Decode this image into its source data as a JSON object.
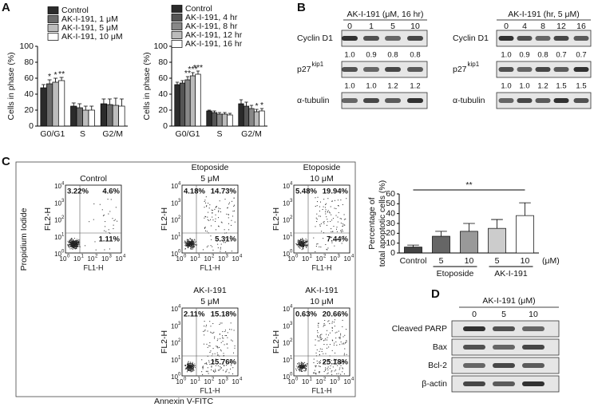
{
  "panel_labels": [
    "A",
    "B",
    "C",
    "D"
  ],
  "chart_data": [
    {
      "type": "bar",
      "ylabel": "Cells in phase (%)",
      "categories": [
        "G0/G1",
        "S",
        "G2/M"
      ],
      "ylim": [
        0,
        100
      ],
      "yticks": [
        0,
        20,
        40,
        60,
        80,
        100
      ],
      "series": [
        {
          "name": "Control",
          "color": "#2b2b2b",
          "values": [
            48,
            25,
            28
          ],
          "errors": [
            4,
            4,
            6
          ]
        },
        {
          "name": "AK-I-191, 1 μM",
          "color": "#6b6b6b",
          "values": [
            53,
            23,
            27
          ],
          "errors": [
            5,
            5,
            7
          ],
          "significance": [
            "*",
            null,
            null
          ]
        },
        {
          "name": "AK-I-191, 5 μM",
          "color": "#bdbdbd",
          "values": [
            55,
            20,
            26
          ],
          "errors": [
            5,
            5,
            9
          ],
          "significance": [
            "*",
            null,
            null
          ]
        },
        {
          "name": "AK-I-191, 10 μM",
          "color": "#ffffff",
          "values": [
            57,
            20,
            25
          ],
          "errors": [
            4,
            5,
            9
          ],
          "significance": [
            "**",
            null,
            null
          ]
        }
      ]
    },
    {
      "type": "bar",
      "ylabel": "Cells in phase (%)",
      "categories": [
        "G0/G1",
        "S",
        "G2/M"
      ],
      "ylim": [
        0,
        100
      ],
      "yticks": [
        0,
        20,
        40,
        60,
        80,
        100
      ],
      "series": [
        {
          "name": "Control",
          "color": "#2b2b2b",
          "values": [
            52,
            19,
            28
          ],
          "errors": [
            3,
            1,
            5
          ]
        },
        {
          "name": "AK-I-191, 4 hr",
          "color": "#555555",
          "values": [
            54,
            17,
            25
          ],
          "errors": [
            3,
            2,
            5
          ]
        },
        {
          "name": "AK-I-191, 8 hr",
          "color": "#888888",
          "values": [
            58,
            15,
            22
          ],
          "errors": [
            4,
            2,
            4
          ],
          "significance": [
            "**",
            null,
            null
          ]
        },
        {
          "name": "AK-I-191, 12 hr",
          "color": "#bbbbbb",
          "values": [
            63,
            15,
            18
          ],
          "errors": [
            4,
            2,
            3
          ],
          "significance": [
            "***",
            null,
            "*"
          ]
        },
        {
          "name": "AK-I-191, 16 hr",
          "color": "#ffffff",
          "values": [
            65,
            14,
            19
          ],
          "errors": [
            4,
            2,
            3
          ],
          "significance": [
            "***",
            null,
            "*"
          ]
        }
      ]
    },
    {
      "type": "bar",
      "ylabel": [
        "Percentage of",
        "total apoptotic cells (%)"
      ],
      "categories": [
        "Control",
        "5",
        "10",
        "5",
        "10"
      ],
      "values": [
        6,
        17,
        22,
        25,
        38
      ],
      "errors": [
        2,
        5,
        8,
        9,
        13
      ],
      "colors": [
        "#444444",
        "#666666",
        "#999999",
        "#cccccc",
        "#ffffff"
      ],
      "ylim": [
        0,
        60
      ],
      "yticks": [
        0,
        10,
        20,
        30,
        40,
        50,
        60
      ],
      "groups": [
        "Etoposide",
        "AK-I-191"
      ],
      "unit": "(μM)",
      "significance": "**"
    }
  ],
  "blots": [
    {
      "title": "AK-I-191 (μM, 16 hr)",
      "lanes": [
        "0",
        "1",
        "5",
        "10"
      ],
      "rows": [
        {
          "label": "Cyclin D1",
          "quantification": [
            "1.0",
            "0.9",
            "0.8",
            "0.8"
          ]
        },
        {
          "label": "p27",
          "label_sup": "kip1",
          "quantification": [
            "1.0",
            "1.0",
            "1.2",
            "1.2"
          ]
        },
        {
          "label": "α-tubulin"
        }
      ]
    },
    {
      "title": "AK-I-191 (hr, 5 μM)",
      "lanes": [
        "0",
        "4",
        "8",
        "12",
        "16"
      ],
      "rows": [
        {
          "label": "Cyclin D1",
          "quantification": [
            "1.0",
            "0.9",
            "0.8",
            "0.7",
            "0.7"
          ]
        },
        {
          "label": "p27",
          "label_sup": "kip1",
          "quantification": [
            "1.0",
            "1.0",
            "1.2",
            "1.5",
            "1.5"
          ]
        },
        {
          "label": "α-tubulin"
        }
      ]
    },
    {
      "title": "AK-I-191 (μM)",
      "lanes": [
        "0",
        "5",
        "10"
      ],
      "rows": [
        {
          "label": "Cleaved PARP"
        },
        {
          "label": "Bax"
        },
        {
          "label": "Bcl-2"
        },
        {
          "label": "β-actin"
        }
      ]
    }
  ],
  "flow": {
    "ylabel": "Propidium Iodide",
    "xlabel": "Annexin V-FITC",
    "x_axis": "FL1-H",
    "y_axis": "FL2-H",
    "tick_base": "10",
    "tick_exponents": [
      "0",
      "1",
      "2",
      "3",
      "4"
    ],
    "plots": [
      {
        "title": [
          "Control"
        ],
        "upper_left": "3.22%",
        "upper_right": "4.6%",
        "lower_right": "1.11%"
      },
      {
        "title": [
          "Etoposide",
          "5 μM"
        ],
        "upper_left": "4.18%",
        "upper_right": "14.73%",
        "lower_right": "5.31%"
      },
      {
        "title": [
          "Etoposide",
          "10 μM"
        ],
        "upper_left": "5.48%",
        "upper_right": "19.94%",
        "lower_right": "7.44%"
      },
      {
        "title": [
          "AK-I-191",
          "5 μM"
        ],
        "upper_left": "2.11%",
        "upper_right": "15.18%",
        "lower_right": "15.76%"
      },
      {
        "title": [
          "AK-I-191",
          "10 μM"
        ],
        "upper_left": "0.63%",
        "upper_right": "20.66%",
        "lower_right": "25.18%"
      }
    ]
  }
}
